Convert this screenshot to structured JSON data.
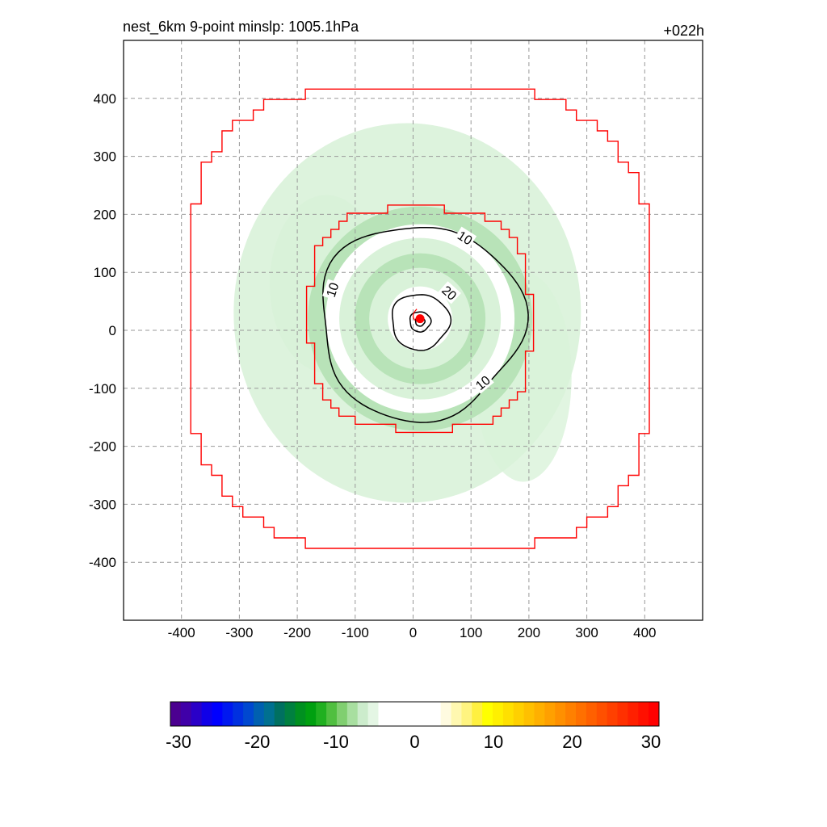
{
  "chart_data": {
    "type": "contour",
    "title_left": "nest_6km  9-point minslp: 1005.1hPa",
    "title_right": "+022h",
    "xlim": [
      -500,
      500
    ],
    "ylim": [
      -500,
      500
    ],
    "x_ticks": [
      -400,
      -300,
      -200,
      -100,
      0,
      100,
      200,
      300,
      400
    ],
    "y_ticks": [
      -400,
      -300,
      -200,
      -100,
      0,
      100,
      200,
      300,
      400
    ],
    "grid": true,
    "center_marker": {
      "x": 12,
      "y": 20,
      "color": "#ff0000"
    },
    "contour_lines": [
      {
        "level": 10,
        "label": "10",
        "radius_approx": 175
      },
      {
        "level": 20,
        "label": "20",
        "radius_approx": 50
      },
      {
        "level": 30,
        "radius_approx": 18
      },
      {
        "level": 40,
        "radius_approx": 8
      }
    ],
    "contour_labels": [
      {
        "text": "10",
        "x": 90,
        "y": 160,
        "rotation": 32
      },
      {
        "text": "10",
        "x": -140,
        "y": 70,
        "rotation": -72
      },
      {
        "text": "10",
        "x": 120,
        "y": -90,
        "rotation": -40
      },
      {
        "text": "20",
        "x": 63,
        "y": 65,
        "rotation": 42
      }
    ],
    "domain_boundaries": [
      {
        "name": "outer",
        "color": "#ff0000",
        "half_width_approx": 400
      },
      {
        "name": "inner",
        "color": "#ff0000",
        "half_width_approx": 190
      }
    ],
    "colorbar": {
      "min": -30,
      "max": 30,
      "tick_labels": [
        "-30",
        "-20",
        "-10",
        "0",
        "10",
        "20",
        "30"
      ],
      "colors": [
        "#4b0090",
        "#4000a8",
        "#2a00c8",
        "#1000e8",
        "#0000ff",
        "#0018f0",
        "#0030e0",
        "#0048d0",
        "#0060b0",
        "#007090",
        "#007060",
        "#008040",
        "#009020",
        "#00a010",
        "#20b020",
        "#50bf40",
        "#80cf70",
        "#a8dfa0",
        "#cceccc",
        "#e4f6e4",
        "#ffffff",
        "#ffffff",
        "#ffffff",
        "#ffffff",
        "#ffffff",
        "#ffffff",
        "#fffbe0",
        "#fff8b0",
        "#fff480",
        "#fff040",
        "#ffff00",
        "#fff000",
        "#ffe000",
        "#ffd000",
        "#ffc000",
        "#ffb000",
        "#ffa000",
        "#ff9000",
        "#ff8000",
        "#ff7000",
        "#ff6000",
        "#ff5000",
        "#ff4000",
        "#ff3000",
        "#ff2000",
        "#ff1000",
        "#ff0000"
      ]
    }
  }
}
